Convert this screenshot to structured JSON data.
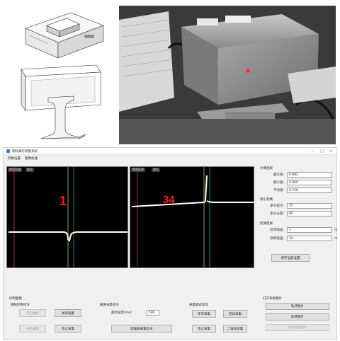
{
  "window": {
    "title": "钢轨廓形测量系统",
    "controls": [
      "—",
      "□",
      "✕"
    ]
  },
  "menu": [
    "参数设置",
    "图像处理"
  ],
  "views": [
    {
      "tabs": [
        "视频处理",
        "保存"
      ],
      "value": "1"
    },
    {
      "tabs": [
        "视频处理",
        "保存"
      ],
      "value": "34"
    }
  ],
  "measure": {
    "title": "计测结果",
    "rows": [
      {
        "label": "最大值:",
        "value": "0.982"
      },
      {
        "label": "最小值:",
        "value": "0.669"
      },
      {
        "label": "平均值:",
        "value": "0.720"
      }
    ]
  },
  "index_params": {
    "title": "索引参数",
    "rows": [
      {
        "label": "索引起点:",
        "value": "25"
      },
      {
        "label": "索引长度:",
        "value": "80"
      }
    ]
  },
  "detect": {
    "title": "检测结果",
    "rows": [
      {
        "label": "轨顶误差:",
        "value": "1",
        "unit": "m"
      },
      {
        "label": "轨侧误差:",
        "value": "34",
        "unit": "m"
      }
    ]
  },
  "save_button": "保存当前设置",
  "control_panel": {
    "title": "控制面板",
    "subtitle": "相机控制指令",
    "buttons": [
      "开启相机",
      "关闭设备",
      "开始采集",
      "停止采集"
    ],
    "disabled": [
      true,
      false,
      true,
      false
    ]
  },
  "trigger": {
    "title": "触发采集指令",
    "timeout_label": "超时设定(ms):",
    "timeout_value": "500",
    "button": "软触发采集指令"
  },
  "acquire": {
    "title": "采集模式指令",
    "buttons": [
      "单次采集",
      "连续采集",
      "停止采集",
      "二值化处理"
    ]
  },
  "image_out": {
    "title": "打开系统图片",
    "buttons": [
      "轨顶图片",
      "轨侧图片",
      "保存处理图片"
    ],
    "disabled": [
      false,
      false,
      true
    ]
  }
}
